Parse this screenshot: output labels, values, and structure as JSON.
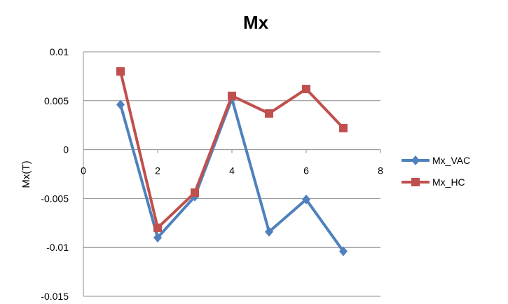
{
  "chart_data": {
    "type": "line",
    "title": "Mx",
    "xlabel": "",
    "ylabel": "Mx(T)",
    "xlim": [
      0,
      8
    ],
    "ylim": [
      -0.015,
      0.01
    ],
    "xticks": [
      "0",
      "2",
      "4",
      "6",
      "8"
    ],
    "yticks": [
      "0.01",
      "0.005",
      "0",
      "-0.005",
      "-0.01",
      "-0.015"
    ],
    "grid": true,
    "legend_position": "right",
    "series": [
      {
        "name": "Mx_VAC",
        "color": "#4f81bd",
        "marker": "diamond",
        "x": [
          1,
          2,
          3,
          4,
          5,
          6,
          7
        ],
        "values": [
          0.0046,
          -0.009,
          -0.0048,
          0.0052,
          -0.0084,
          -0.0051,
          -0.0104
        ]
      },
      {
        "name": "Mx_HC",
        "color": "#c0504d",
        "marker": "square",
        "x": [
          1,
          2,
          3,
          4,
          5,
          6,
          7
        ],
        "values": [
          0.008,
          -0.008,
          -0.0044,
          0.0055,
          0.0037,
          0.0062,
          0.0022
        ]
      }
    ]
  }
}
